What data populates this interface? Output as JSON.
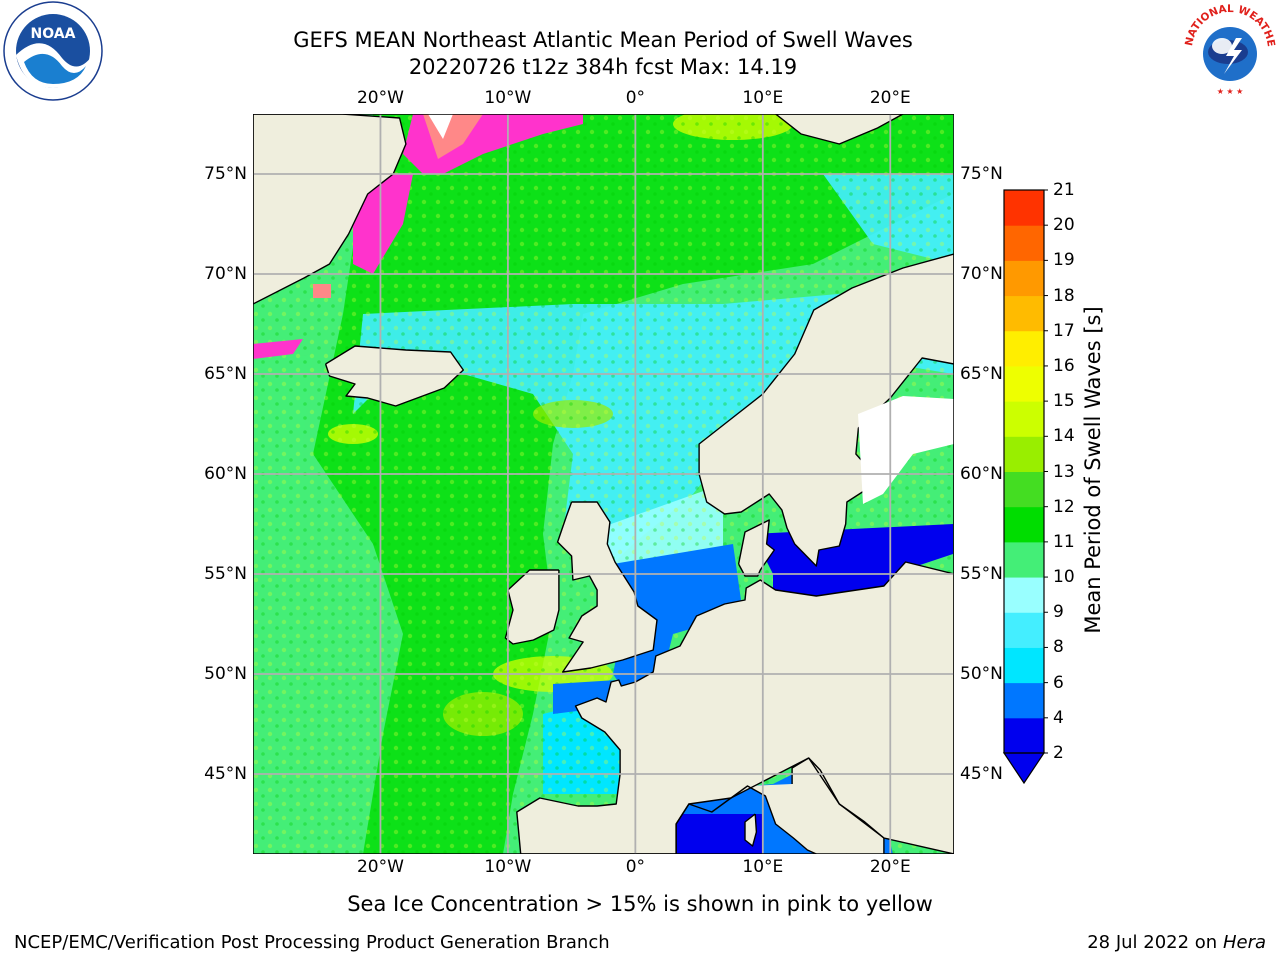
{
  "header": {
    "title_line1": "GEFS MEAN Northeast Atlantic Mean Period of Swell Waves",
    "title_line2": "20220726 t12z 384h fcst   Max: 14.19"
  },
  "logos": {
    "left": {
      "name": "noaa-logo",
      "text": "NOAA",
      "ring_text": "NATIONAL OCEANIC AND ATMOSPHERIC ADMINISTRATION · U.S. DEPARTMENT OF COMMERCE"
    },
    "right": {
      "name": "nws-logo",
      "ring_text": "NATIONAL WEATHER SERVICE"
    }
  },
  "map": {
    "projection": "equirectangular",
    "lon_range": [
      -30,
      25
    ],
    "lat_range": [
      41,
      78
    ],
    "lon_ticks": [
      {
        "value": -20,
        "label": "20°W"
      },
      {
        "value": -10,
        "label": "10°W"
      },
      {
        "value": 0,
        "label": "0°"
      },
      {
        "value": 10,
        "label": "10°E"
      },
      {
        "value": 20,
        "label": "20°E"
      }
    ],
    "lat_ticks": [
      {
        "value": 75,
        "label": "75°N"
      },
      {
        "value": 70,
        "label": "70°N"
      },
      {
        "value": 65,
        "label": "65°N"
      },
      {
        "value": 60,
        "label": "60°N"
      },
      {
        "value": 55,
        "label": "55°N"
      },
      {
        "value": 50,
        "label": "50°N"
      },
      {
        "value": 45,
        "label": "45°N"
      }
    ],
    "gridlines": true,
    "land_color": "#efeedd",
    "ice_colors": [
      "#ff33cc",
      "#ff66aa",
      "#ff8888",
      "#ffaa66",
      "#ffcc33"
    ],
    "land_outlines": [
      {
        "name": "greenland-coast",
        "points": [
          [
            -30,
            78
          ],
          [
            -23,
            78
          ],
          [
            -18.5,
            77.8
          ],
          [
            -18,
            76.5
          ],
          [
            -19,
            75
          ],
          [
            -21,
            74
          ],
          [
            -22.5,
            72
          ],
          [
            -24,
            70.5
          ],
          [
            -26,
            69.8
          ],
          [
            -30,
            68.5
          ]
        ]
      },
      {
        "name": "svalbard",
        "points": [
          [
            11,
            78
          ],
          [
            13,
            77
          ],
          [
            16,
            76.5
          ],
          [
            19,
            77.3
          ],
          [
            21,
            78
          ]
        ]
      },
      {
        "name": "iceland",
        "points": [
          [
            -24.3,
            65.5
          ],
          [
            -22,
            66.4
          ],
          [
            -18,
            66.2
          ],
          [
            -14.5,
            66.1
          ],
          [
            -13.5,
            65.2
          ],
          [
            -15,
            64.3
          ],
          [
            -18.8,
            63.4
          ],
          [
            -21,
            63.8
          ],
          [
            -22.7,
            63.9
          ],
          [
            -22,
            64.5
          ],
          [
            -24,
            64.9
          ],
          [
            -24.3,
            65.5
          ]
        ]
      },
      {
        "name": "scandinavia",
        "points": [
          [
            25,
            71
          ],
          [
            21,
            70.3
          ],
          [
            17,
            69.3
          ],
          [
            14,
            68.2
          ],
          [
            12.5,
            66
          ],
          [
            10,
            64
          ],
          [
            7,
            62.5
          ],
          [
            5,
            61.5
          ],
          [
            5,
            60
          ],
          [
            5.6,
            58.6
          ],
          [
            7,
            58
          ],
          [
            8.3,
            58.1
          ],
          [
            10.5,
            59
          ],
          [
            11.5,
            58.2
          ],
          [
            11.9,
            57.3
          ],
          [
            12.5,
            56.5
          ],
          [
            14.2,
            55.4
          ],
          [
            14.4,
            56.2
          ],
          [
            16,
            56.4
          ],
          [
            16.5,
            57.5
          ],
          [
            16.6,
            58.6
          ],
          [
            18.3,
            59.3
          ],
          [
            18,
            60.5
          ],
          [
            17.3,
            61
          ],
          [
            17.5,
            62.3
          ],
          [
            20,
            63.8
          ],
          [
            21.5,
            65
          ],
          [
            22.5,
            65.8
          ],
          [
            25,
            65.5
          ]
        ]
      },
      {
        "name": "denmark",
        "points": [
          [
            8.1,
            55.5
          ],
          [
            8.6,
            57.1
          ],
          [
            10.5,
            57.7
          ],
          [
            10.3,
            56.5
          ],
          [
            10.9,
            56.2
          ],
          [
            9.8,
            55.2
          ],
          [
            9.6,
            54.9
          ],
          [
            8.6,
            54.9
          ],
          [
            8.1,
            55.5
          ]
        ]
      },
      {
        "name": "great-britain",
        "points": [
          [
            -5,
            58.6
          ],
          [
            -3,
            58.6
          ],
          [
            -2,
            57.6
          ],
          [
            -2.2,
            56.5
          ],
          [
            -1.6,
            55.6
          ],
          [
            -0.1,
            54.1
          ],
          [
            0.2,
            53.4
          ],
          [
            1.7,
            52.7
          ],
          [
            1.4,
            51.2
          ],
          [
            -1,
            50.7
          ],
          [
            -3.5,
            50.3
          ],
          [
            -5.7,
            50.1
          ],
          [
            -4.1,
            51.6
          ],
          [
            -5.2,
            51.8
          ],
          [
            -4.2,
            52.9
          ],
          [
            -3,
            53.4
          ],
          [
            -3,
            54.2
          ],
          [
            -3.6,
            54.9
          ],
          [
            -4.9,
            54.7
          ],
          [
            -5,
            55.9
          ],
          [
            -6.1,
            56.6
          ],
          [
            -5.4,
            57.9
          ],
          [
            -5,
            58.6
          ]
        ]
      },
      {
        "name": "ireland",
        "points": [
          [
            -6,
            55.2
          ],
          [
            -8.3,
            55.2
          ],
          [
            -10,
            54.2
          ],
          [
            -9.6,
            53.2
          ],
          [
            -10.2,
            51.8
          ],
          [
            -9.6,
            51.5
          ],
          [
            -8,
            51.7
          ],
          [
            -6.4,
            52.2
          ],
          [
            -6,
            53.2
          ],
          [
            -6,
            55.2
          ]
        ]
      },
      {
        "name": "continent",
        "points": [
          [
            25,
            55
          ],
          [
            21.2,
            55.6
          ],
          [
            19.5,
            54.4
          ],
          [
            14.2,
            53.9
          ],
          [
            11,
            54.2
          ],
          [
            9.8,
            54.7
          ],
          [
            8.7,
            54.3
          ],
          [
            8.6,
            53.7
          ],
          [
            7,
            53.5
          ],
          [
            4.8,
            52.9
          ],
          [
            3.5,
            51.4
          ],
          [
            1.6,
            50.9
          ],
          [
            1.4,
            50.1
          ],
          [
            0,
            49.6
          ],
          [
            -1.1,
            49.4
          ],
          [
            -1.3,
            49.7
          ],
          [
            -1.9,
            49.6
          ],
          [
            -2.3,
            48.6
          ],
          [
            -3,
            48.8
          ],
          [
            -4.7,
            48.4
          ],
          [
            -4.2,
            47.8
          ],
          [
            -2.4,
            47.1
          ],
          [
            -1.2,
            46.2
          ],
          [
            -1.2,
            45
          ],
          [
            -1.5,
            43.5
          ],
          [
            -3,
            43.4
          ],
          [
            -4.5,
            43.4
          ],
          [
            -6,
            43.6
          ],
          [
            -7.5,
            43.8
          ],
          [
            -9.3,
            43.1
          ],
          [
            -9,
            41
          ]
        ]
      },
      {
        "name": "mediterranean-coast",
        "points": [
          [
            3.2,
            41
          ],
          [
            3.2,
            42.5
          ],
          [
            4.2,
            43.5
          ],
          [
            6,
            43.1
          ],
          [
            7.5,
            43.8
          ],
          [
            8.8,
            44.4
          ],
          [
            10.2,
            43.9
          ],
          [
            11,
            42.5
          ],
          [
            12.4,
            41.8
          ],
          [
            13.5,
            41.2
          ],
          [
            14.2,
            41
          ]
        ]
      },
      {
        "name": "italy-adriatic",
        "points": [
          [
            16.5,
            41
          ],
          [
            17.5,
            40.6
          ],
          [
            18.5,
            40.1
          ],
          [
            16.5,
            39.5
          ],
          [
            17,
            39
          ]
        ]
      },
      {
        "name": "adriatic-east",
        "points": [
          [
            13.6,
            45.8
          ],
          [
            14.5,
            45.2
          ],
          [
            16,
            43.5
          ],
          [
            18,
            42.6
          ],
          [
            19.5,
            41.8
          ],
          [
            19.5,
            41
          ]
        ]
      },
      {
        "name": "italy-north",
        "points": [
          [
            12.3,
            44.5
          ],
          [
            12.3,
            45.3
          ],
          [
            13.6,
            45.8
          ]
        ]
      },
      {
        "name": "corsica",
        "points": [
          [
            9.4,
            43
          ],
          [
            9.5,
            42.1
          ],
          [
            9.2,
            41.4
          ],
          [
            8.6,
            41.7
          ],
          [
            8.6,
            42.6
          ],
          [
            9.4,
            43
          ]
        ]
      }
    ],
    "scalar_field": "Mean Period of Swell Waves",
    "units": "s",
    "max_value": 14.19
  },
  "colorbar": {
    "label": "Mean Period of Swell Waves [s]",
    "ticks": [
      "2",
      "4",
      "6",
      "8",
      "9",
      "10",
      "11",
      "12",
      "13",
      "14",
      "15",
      "16",
      "17",
      "18",
      "19",
      "20",
      "21"
    ],
    "colors": [
      "#0000ee",
      "#0077ff",
      "#00e6ff",
      "#44eeff",
      "#99ffff",
      "#44ee77",
      "#00dd00",
      "#44dd22",
      "#99ee00",
      "#ccff00",
      "#eeff00",
      "#ffee00",
      "#ffbb00",
      "#ff9900",
      "#ff6600",
      "#ff3300",
      "#ff0000"
    ],
    "extend": "min"
  },
  "chart_data": {
    "type": "heatmap",
    "title": "GEFS MEAN Northeast Atlantic Mean Period of Swell Waves",
    "subtitle": "20220726 t12z 384h fcst   Max: 14.19",
    "xlim": [
      -30,
      25
    ],
    "ylim": [
      41,
      78
    ],
    "colorbar_label": "Mean Period of Swell Waves [s]",
    "value_range": [
      2,
      21
    ],
    "max": 14.19,
    "grid": true,
    "legend_position": "right"
  },
  "notes": {
    "ice_caption": "Sea Ice Concentration > 15% is shown in pink to yellow"
  },
  "footer": {
    "left": "NCEP/EMC/Verification Post Processing Product Generation Branch",
    "right_prefix": "28 Jul 2022 on ",
    "right_host": "Hera"
  }
}
